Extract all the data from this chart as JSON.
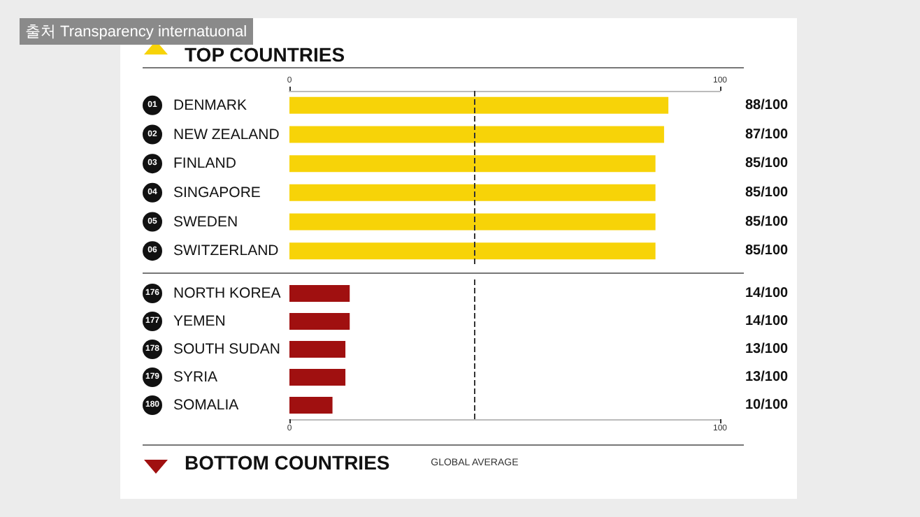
{
  "chart_data": [
    {
      "type": "bar",
      "title": "TOP COUNTRIES",
      "orientation": "horizontal",
      "annotations": [
        "출처 Transparency internatuonal"
      ],
      "categories": [
        "01 DENMARK",
        "02 NEW ZEALAND",
        "03 FINLAND",
        "04 SINGAPORE",
        "05 SWEDEN",
        "06 SWITZERLAND"
      ],
      "values": [
        88,
        87,
        85,
        85,
        85,
        85
      ],
      "color": "#f7d308",
      "value_labels": [
        "88/100",
        "87/100",
        "85/100",
        "85/100",
        "85/100",
        "85/100"
      ],
      "x2lim": [
        0,
        100
      ],
      "x2ticks": [
        0,
        100
      ],
      "grid": false,
      "ref_lines": [
        {
          "axis": "x",
          "value": 43,
          "line_style": "dashed",
          "color": "#333333"
        }
      ]
    },
    {
      "type": "bar",
      "title": "BOTTOM COUNTRIES",
      "orientation": "horizontal",
      "categories": [
        "176 NORTH KOREA",
        "177 YEMEN",
        "178 SOUTH SUDAN",
        "179 SYRIA",
        "180 SOMALIA"
      ],
      "values": [
        14,
        14,
        13,
        13,
        10
      ],
      "color": "#a01010",
      "value_labels": [
        "14/100",
        "14/100",
        "13/100",
        "13/100",
        "10/100"
      ],
      "xlim": [
        0,
        100
      ],
      "xticks": [
        0,
        100
      ],
      "grid": false,
      "ref_lines": [
        {
          "axis": "x",
          "value": 43,
          "label": "GLOBAL AVERAGE",
          "line_style": "dashed",
          "color": "#333333"
        }
      ]
    }
  ]
}
